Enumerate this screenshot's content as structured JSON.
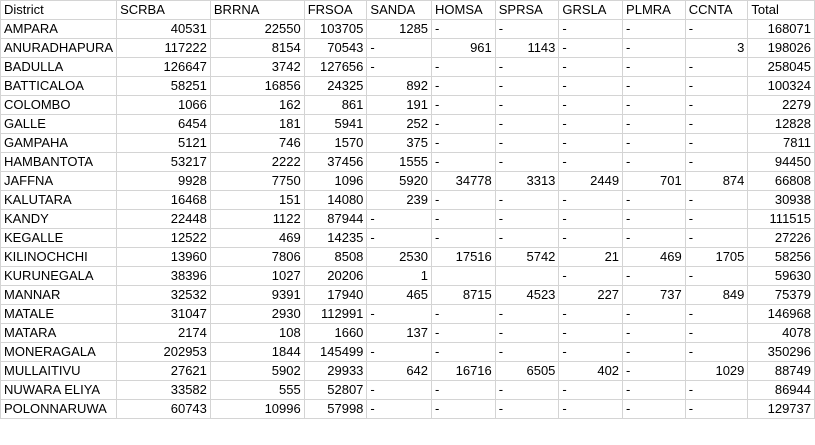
{
  "sheet": {
    "headers": [
      "District",
      "SCRBA",
      "BRRNA",
      "FRSOA",
      "SANDA",
      "HOMSA",
      "SPRSA",
      "GRSLA",
      "PLMRA",
      "CCNTA",
      "Total"
    ],
    "rows": [
      [
        "AMPARA",
        "40531",
        "22550",
        "103705",
        "1285",
        "-",
        "-",
        "-",
        "-",
        "-",
        "168071"
      ],
      [
        "ANURADHAPURA",
        "117222",
        "8154",
        "70543",
        "-",
        "961",
        "1143",
        "-",
        "-",
        "3",
        "198026"
      ],
      [
        "BADULLA",
        "126647",
        "3742",
        "127656",
        "-",
        "-",
        "-",
        "-",
        "-",
        "-",
        "258045"
      ],
      [
        "BATTICALOA",
        "58251",
        "16856",
        "24325",
        "892",
        "-",
        "-",
        "-",
        "-",
        "-",
        "100324"
      ],
      [
        "COLOMBO",
        "1066",
        "162",
        "861",
        "191",
        "-",
        "-",
        "-",
        "-",
        "-",
        "2279"
      ],
      [
        "GALLE",
        "6454",
        "181",
        "5941",
        "252",
        "-",
        "-",
        "-",
        "-",
        "-",
        "12828"
      ],
      [
        "GAMPAHA",
        "5121",
        "746",
        "1570",
        "375",
        "-",
        "-",
        "-",
        "-",
        "-",
        "7811"
      ],
      [
        "HAMBANTOTA",
        "53217",
        "2222",
        "37456",
        "1555",
        "-",
        "-",
        "-",
        "-",
        "-",
        "94450"
      ],
      [
        "JAFFNA",
        "9928",
        "7750",
        "1096",
        "5920",
        "34778",
        "3313",
        "2449",
        "701",
        "874",
        "66808"
      ],
      [
        "KALUTARA",
        "16468",
        "151",
        "14080",
        "239",
        "-",
        "-",
        "-",
        "-",
        "-",
        "30938"
      ],
      [
        "KANDY",
        "22448",
        "1122",
        "87944",
        "-",
        "-",
        "-",
        "-",
        "-",
        "-",
        "111515"
      ],
      [
        "KEGALLE",
        "12522",
        "469",
        "14235",
        "-",
        "-",
        "-",
        "-",
        "-",
        "-",
        "27226"
      ],
      [
        "KILINOCHCHI",
        "13960",
        "7806",
        "8508",
        "2530",
        "17516",
        "5742",
        "21",
        "469",
        "1705",
        "58256"
      ],
      [
        "KURUNEGALA",
        "38396",
        "1027",
        "20206",
        "1",
        "",
        "",
        "-",
        "-",
        "-",
        "59630"
      ],
      [
        "MANNAR",
        "32532",
        "9391",
        "17940",
        "465",
        "8715",
        "4523",
        "227",
        "737",
        "849",
        "75379"
      ],
      [
        "MATALE",
        "31047",
        "2930",
        "112991",
        "-",
        "-",
        "-",
        "-",
        "-",
        "-",
        "146968"
      ],
      [
        "MATARA",
        "2174",
        "108",
        "1660",
        "137",
        "-",
        "-",
        "-",
        "-",
        "-",
        "4078"
      ],
      [
        "MONERAGALA",
        "202953",
        "1844",
        "145499",
        "-",
        "-",
        "-",
        "-",
        "-",
        "-",
        "350296"
      ],
      [
        "MULLAITIVU",
        "27621",
        "5902",
        "29933",
        "642",
        "16716",
        "6505",
        "402",
        "-",
        "1029",
        "88749"
      ],
      [
        "NUWARA ELIYA",
        "33582",
        "555",
        "52807",
        "-",
        "-",
        "-",
        "-",
        "-",
        "-",
        "86944"
      ],
      [
        "POLONNARUWA",
        "60743",
        "10996",
        "57998",
        "-",
        "-",
        "-",
        "-",
        "-",
        "-",
        "129737"
      ]
    ]
  }
}
